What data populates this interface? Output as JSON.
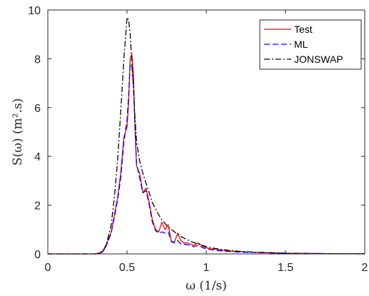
{
  "chart_data": {
    "type": "line",
    "title": "",
    "xlabel": "ω (1/s)",
    "ylabel": "S(ω) (m².s)",
    "xlim": [
      0,
      2
    ],
    "ylim": [
      0,
      10
    ],
    "x_ticks": [
      "0",
      "0.5",
      "1",
      "1.5",
      "2"
    ],
    "y_ticks": [
      "0",
      "2",
      "4",
      "6",
      "8",
      "10"
    ],
    "grid": false,
    "legend_position": "top-right",
    "series": [
      {
        "name": "Test",
        "color": "#ff0000",
        "dash": "solid",
        "x": [
          0,
          0.3,
          0.33,
          0.35,
          0.37,
          0.4,
          0.42,
          0.44,
          0.46,
          0.48,
          0.5,
          0.51,
          0.52,
          0.53,
          0.54,
          0.55,
          0.56,
          0.58,
          0.6,
          0.62,
          0.64,
          0.66,
          0.68,
          0.7,
          0.72,
          0.74,
          0.76,
          0.78,
          0.8,
          0.82,
          0.84,
          0.86,
          0.88,
          0.9,
          0.92,
          0.95,
          0.98,
          1.0,
          1.03,
          1.06,
          1.1,
          1.15,
          1.2,
          1.3,
          1.4,
          1.5,
          1.6,
          1.8,
          2.0
        ],
        "y": [
          0,
          0,
          0.05,
          0.15,
          0.4,
          0.9,
          1.6,
          2.3,
          3.3,
          4.8,
          5.2,
          6.2,
          8.0,
          8.2,
          7.4,
          5.2,
          3.6,
          3.3,
          2.5,
          2.7,
          2.1,
          1.4,
          1.0,
          0.9,
          1.3,
          1.0,
          1.2,
          0.5,
          0.5,
          0.85,
          0.55,
          0.45,
          0.45,
          0.4,
          0.35,
          0.45,
          0.3,
          0.25,
          0.2,
          0.2,
          0.15,
          0.12,
          0.1,
          0.07,
          0.05,
          0.03,
          0.02,
          0.01,
          0.01
        ]
      },
      {
        "name": "ML",
        "color": "#0000ff",
        "dash": "dashed",
        "x": [
          0,
          0.3,
          0.33,
          0.35,
          0.37,
          0.4,
          0.42,
          0.44,
          0.46,
          0.48,
          0.5,
          0.51,
          0.52,
          0.53,
          0.54,
          0.55,
          0.56,
          0.58,
          0.6,
          0.62,
          0.64,
          0.66,
          0.68,
          0.7,
          0.72,
          0.74,
          0.76,
          0.78,
          0.8,
          0.82,
          0.84,
          0.86,
          0.88,
          0.9,
          0.92,
          0.95,
          0.98,
          1.0,
          1.03,
          1.06,
          1.1,
          1.15,
          1.2,
          1.3,
          1.4,
          1.5,
          1.6,
          1.8,
          2.0
        ],
        "y": [
          0,
          0,
          0.03,
          0.12,
          0.35,
          0.85,
          1.5,
          2.2,
          3.1,
          4.6,
          5.5,
          6.5,
          7.8,
          7.7,
          7.0,
          5.3,
          3.7,
          3.1,
          2.5,
          2.6,
          2.0,
          1.3,
          0.95,
          0.85,
          0.9,
          0.85,
          0.9,
          0.5,
          0.45,
          0.55,
          0.4,
          0.4,
          0.38,
          0.35,
          0.3,
          0.35,
          0.25,
          0.2,
          0.18,
          0.15,
          0.12,
          0.1,
          0.08,
          0.06,
          0.04,
          0.03,
          0.02,
          0.01,
          0.0
        ]
      },
      {
        "name": "JONSWAP",
        "color": "#000000",
        "dash": "dashdot",
        "x": [
          0,
          0.3,
          0.33,
          0.35,
          0.37,
          0.4,
          0.42,
          0.44,
          0.46,
          0.48,
          0.5,
          0.51,
          0.52,
          0.53,
          0.54,
          0.55,
          0.56,
          0.58,
          0.6,
          0.62,
          0.64,
          0.66,
          0.68,
          0.7,
          0.72,
          0.74,
          0.76,
          0.78,
          0.8,
          0.82,
          0.84,
          0.86,
          0.88,
          0.9,
          0.92,
          0.95,
          0.98,
          1.0,
          1.03,
          1.06,
          1.1,
          1.15,
          1.2,
          1.3,
          1.4,
          1.5,
          1.6,
          1.8,
          2.0
        ],
        "y": [
          0,
          0,
          0.03,
          0.1,
          0.4,
          1.2,
          2.3,
          3.8,
          5.8,
          8.0,
          9.7,
          9.6,
          9.0,
          7.9,
          6.8,
          5.6,
          4.6,
          3.8,
          3.3,
          2.9,
          2.5,
          2.1,
          1.85,
          1.6,
          1.4,
          1.25,
          1.1,
          1.0,
          0.9,
          0.8,
          0.72,
          0.65,
          0.58,
          0.52,
          0.47,
          0.4,
          0.34,
          0.3,
          0.26,
          0.22,
          0.18,
          0.14,
          0.11,
          0.07,
          0.05,
          0.03,
          0.02,
          0.01,
          0.0
        ]
      }
    ]
  }
}
